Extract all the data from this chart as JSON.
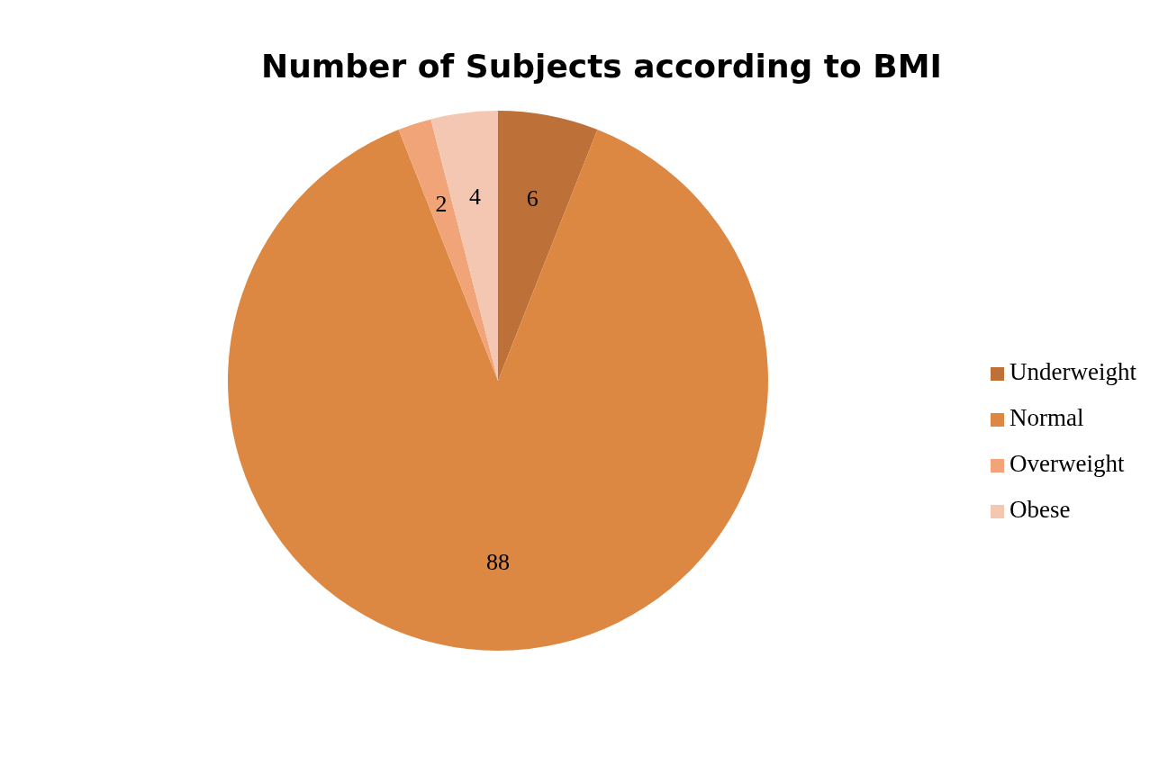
{
  "chart_data": {
    "type": "pie",
    "title": "Number of Subjects according to BMI",
    "categories": [
      "Underweight",
      "Normal",
      "Overweight",
      "Obese"
    ],
    "values": [
      6,
      88,
      2,
      4
    ],
    "colors": [
      "#bd7038",
      "#dc8843",
      "#f0a478",
      "#f4c7b3"
    ],
    "data_labels": true,
    "legend": "right"
  }
}
